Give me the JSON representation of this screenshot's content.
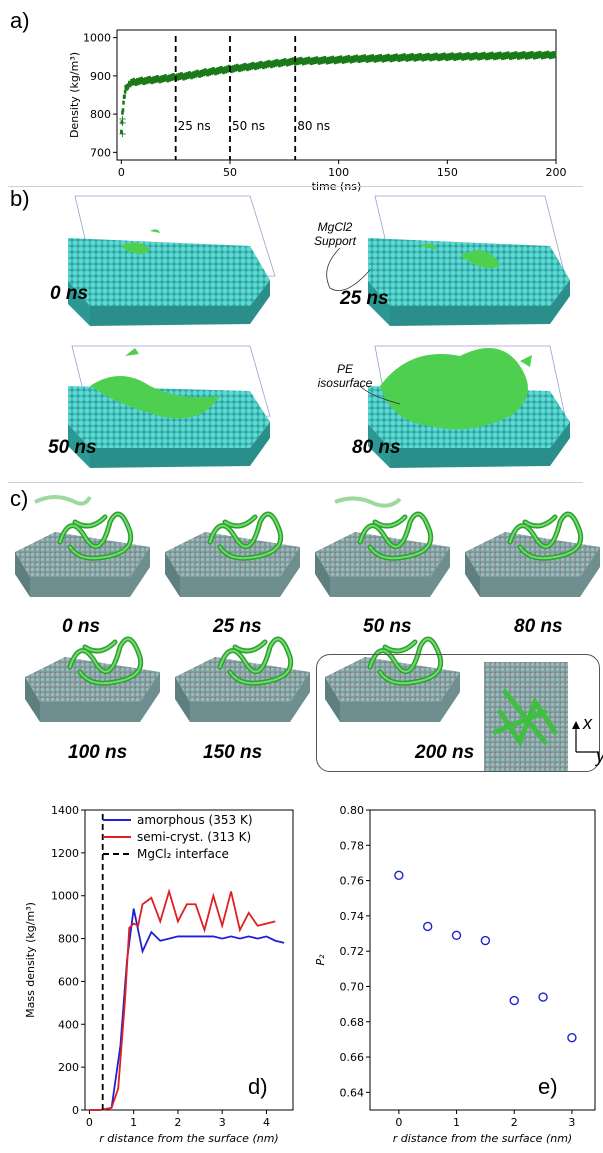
{
  "panel_labels": {
    "a": "a)",
    "b": "b)",
    "c": "c)",
    "d": "d)",
    "e": "e)"
  },
  "panel_b": {
    "times": [
      "0 ns",
      "25 ns",
      "50 ns",
      "80 ns"
    ],
    "annotations": {
      "support_line1": "MgCl2",
      "support_line2": "Support",
      "pe_line1": "PE",
      "pe_line2": "isosurface"
    },
    "colors": {
      "support": "#44c4c0",
      "polymer": "#5dd45d"
    }
  },
  "panel_c": {
    "times": [
      "0 ns",
      "25 ns",
      "50 ns",
      "80 ns",
      "100 ns",
      "150 ns",
      "200 ns"
    ],
    "axes": {
      "x": "x",
      "y": "y"
    },
    "colors": {
      "slab": "#7fa3a4",
      "chain": "#3fbf3f"
    }
  },
  "chart_data": [
    {
      "id": "a",
      "type": "scatter",
      "xlabel": "time (ns)",
      "ylabel": "Density (kg/m³)",
      "xlim": [
        -2,
        200
      ],
      "ylim": [
        680,
        1020
      ],
      "xticks": [
        "0",
        "50",
        "100",
        "150",
        "200"
      ],
      "yticks": [
        "700",
        "800",
        "900",
        "1000"
      ],
      "marker_color": "#1a7a1a",
      "series": {
        "x": [
          0,
          0.5,
          1,
          1.5,
          2,
          3,
          4,
          5,
          7,
          10,
          15,
          20,
          25,
          30,
          40,
          50,
          60,
          70,
          80,
          90,
          100,
          110,
          120,
          130,
          140,
          150,
          160,
          170,
          180,
          190,
          200
        ],
        "y": [
          760,
          800,
          830,
          850,
          865,
          875,
          880,
          883,
          885,
          887,
          890,
          893,
          897,
          900,
          910,
          918,
          925,
          932,
          938,
          940,
          942,
          945,
          946,
          948,
          949,
          950,
          951,
          952,
          953,
          954,
          955
        ]
      },
      "vlines": [
        {
          "x": 25,
          "label": "25 ns"
        },
        {
          "x": 50,
          "label": "50 ns"
        },
        {
          "x": 80,
          "label": "80 ns"
        }
      ]
    },
    {
      "id": "d",
      "type": "line",
      "xlabel": "r distance from the surface (nm)",
      "ylabel": "Mass density (kg/m³)",
      "xlim": [
        -0.1,
        4.6
      ],
      "ylim": [
        0,
        1400
      ],
      "xticks": [
        "0",
        "1",
        "2",
        "3",
        "4"
      ],
      "yticks": [
        "0",
        "200",
        "400",
        "600",
        "800",
        "1000",
        "1200",
        "1400"
      ],
      "series": [
        {
          "name": "amorphous (353 K)",
          "color": "#1f1fd6",
          "x": [
            0,
            0.25,
            0.5,
            0.7,
            0.85,
            1.0,
            1.2,
            1.4,
            1.6,
            1.8,
            2.0,
            2.2,
            2.4,
            2.6,
            2.8,
            3.0,
            3.2,
            3.4,
            3.6,
            3.8,
            4.0,
            4.2,
            4.4
          ],
          "y": [
            0,
            0,
            10,
            300,
            700,
            940,
            740,
            830,
            790,
            800,
            810,
            810,
            810,
            810,
            810,
            800,
            810,
            800,
            810,
            800,
            810,
            790,
            780
          ]
        },
        {
          "name": "semi-cryst. (313 K)",
          "color": "#e02020",
          "x": [
            0,
            0.25,
            0.5,
            0.65,
            0.8,
            0.9,
            1.0,
            1.1,
            1.2,
            1.4,
            1.6,
            1.8,
            2.0,
            2.2,
            2.4,
            2.6,
            2.8,
            3.0,
            3.2,
            3.4,
            3.6,
            3.8,
            4.0,
            4.2
          ],
          "y": [
            0,
            0,
            10,
            100,
            500,
            850,
            870,
            860,
            960,
            990,
            880,
            1020,
            880,
            960,
            960,
            840,
            1000,
            860,
            1020,
            840,
            920,
            860,
            870,
            880
          ]
        },
        {
          "name": "MgCl₂ interface",
          "color": "#000000",
          "style": "dashed",
          "x": [
            0.3,
            0.3
          ],
          "y": [
            0,
            1400
          ]
        }
      ]
    },
    {
      "id": "e",
      "type": "scatter",
      "xlabel": "r distance from the surface (nm)",
      "ylabel": "P₂",
      "xlim": [
        -0.5,
        3.4
      ],
      "ylim": [
        0.63,
        0.8
      ],
      "xticks": [
        "0",
        "1",
        "2",
        "3"
      ],
      "yticks": [
        "0.64",
        "0.66",
        "0.68",
        "0.70",
        "0.72",
        "0.74",
        "0.76",
        "0.78",
        "0.80"
      ],
      "marker_color": "#2020d0",
      "x": [
        0,
        0.5,
        1.0,
        1.5,
        2.0,
        2.5,
        3.0
      ],
      "y": [
        0.763,
        0.734,
        0.729,
        0.726,
        0.692,
        0.694,
        0.671
      ]
    }
  ]
}
